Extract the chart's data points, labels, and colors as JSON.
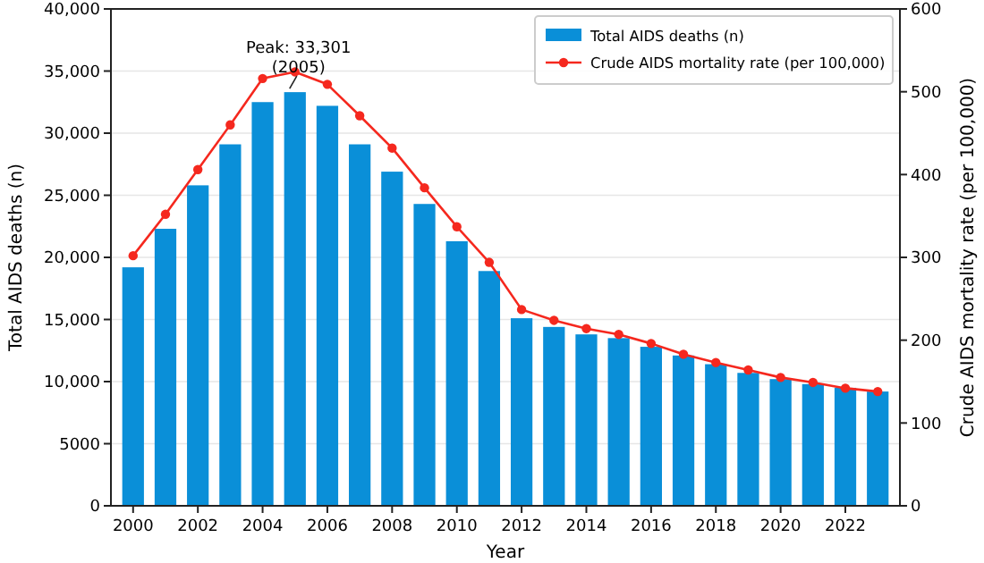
{
  "chart_data": {
    "type": "bar",
    "categories": [
      "2000",
      null,
      "2002",
      null,
      "2004",
      null,
      "2006",
      null,
      "2008",
      null,
      "2010",
      null,
      "2012",
      null,
      "2014",
      null,
      "2016",
      null,
      "2018",
      null,
      "2020",
      null,
      "2022",
      null
    ],
    "series": [
      {
        "name": "Total AIDS deaths (n)",
        "color": "#0a8fd8",
        "values": [
          19200,
          22300,
          25800,
          29100,
          32500,
          33301,
          32200,
          29100,
          26900,
          24300,
          21300,
          18900,
          15100,
          14400,
          13800,
          13500,
          12800,
          12100,
          11400,
          10700,
          10200,
          9800,
          9500,
          9200
        ]
      },
      {
        "name": "Crude AIDS mortality rate (per 100,000)",
        "type": "line",
        "axis": "y2",
        "color": "#f5281e",
        "values": [
          302,
          352,
          406,
          460,
          516,
          524,
          509,
          471,
          432,
          384,
          337,
          294,
          237,
          224,
          214,
          207,
          196,
          183,
          173,
          164,
          155,
          149,
          142,
          138
        ]
      }
    ],
    "xlabel": "Year",
    "ylabel": "Total AIDS deaths (n)",
    "y2label": "Crude AIDS mortality rate (per 100,000)",
    "ylim": [
      0,
      40000
    ],
    "yticks": [
      0,
      5000,
      {
        "value": 10000,
        "label": "10,000"
      },
      {
        "value": 15000,
        "label": "15,000"
      },
      {
        "value": 20000,
        "label": "20,000"
      },
      {
        "value": 25000,
        "label": "25,000"
      },
      {
        "value": 30000,
        "label": "30,000"
      },
      {
        "value": 35000,
        "label": "35,000"
      },
      {
        "value": 40000,
        "label": "40,000"
      }
    ],
    "y2lim": [
      0,
      600
    ],
    "y2ticks": [
      0,
      100,
      200,
      300,
      400,
      500,
      600
    ],
    "annotations": [
      {
        "text": "Peak: 33,301\n(2005)",
        "y": 33301
      }
    ],
    "grid": "y",
    "legend": "top right",
    "marker": "circle"
  }
}
